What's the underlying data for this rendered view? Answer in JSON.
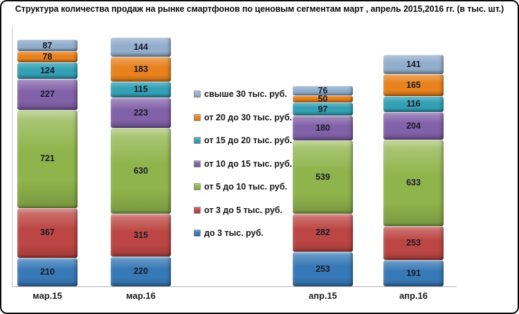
{
  "title": "Структура количества продаж на рынке смартфонов по ценовым сегментам март , апрель 2015,2016 гг. (в тыс. шт.)",
  "chart_data": {
    "type": "bar",
    "subtype": "stacked-vertical",
    "title": "Структура количества продаж на рынке смартфонов по ценовым сегментам март , апрель 2015,2016 гг. (в тыс. шт.)",
    "categories": [
      "мар.15",
      "мар.16",
      "апр.15",
      "апр.16"
    ],
    "series": [
      {
        "name": "до 3 тыс. руб.",
        "color": "#3779B6",
        "values": [
          210,
          220,
          253,
          191
        ]
      },
      {
        "name": "от 3 до 5 тыс. руб.",
        "color": "#BC4643",
        "values": [
          367,
          315,
          282,
          253
        ]
      },
      {
        "name": "от 5 до 10 тыс. руб.",
        "color": "#90B44C",
        "values": [
          721,
          630,
          539,
          633
        ]
      },
      {
        "name": "от 10 до 15 тыс. руб.",
        "color": "#8161A8",
        "values": [
          227,
          223,
          180,
          204
        ]
      },
      {
        "name": "от 15 до 20 тыс. руб.",
        "color": "#33A0B4",
        "values": [
          124,
          115,
          97,
          116
        ]
      },
      {
        "name": "от 20 до 30 тыс. руб.",
        "color": "#E8821E",
        "values": [
          78,
          183,
          50,
          165
        ]
      },
      {
        "name": "свыше 30 тыс. руб.",
        "color": "#93AECD",
        "values": [
          87,
          144,
          76,
          141
        ]
      }
    ],
    "legend_order_top_to_bottom": [
      "свыше 30 тыс. руб.",
      "от 20 до 30 тыс. руб.",
      "от 15 до 20 тыс. руб.",
      "от 10 до 15 тыс. руб.",
      "от 5 до 10 тыс. руб.",
      "от 3 до 5 тыс. руб.",
      "до 3 тыс. руб."
    ],
    "data_labels": true,
    "gridlines": false,
    "legend_position": "middle-between-groups",
    "axis": {
      "y_visible_line": true,
      "x_visible_line": true,
      "y_ticks": "none"
    }
  }
}
